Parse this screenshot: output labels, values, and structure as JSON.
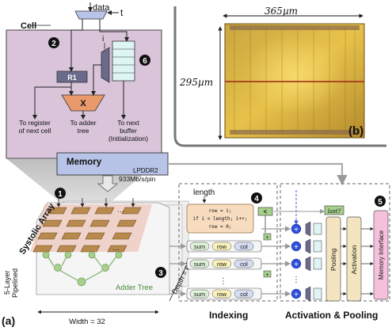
{
  "cell": {
    "title": "Cell",
    "input_data": "data",
    "input_t": "t",
    "input_i": "i",
    "register": "R1",
    "multiplier": "X",
    "label_next_cell": "To register of next cell",
    "label_next_cell_1": "To register",
    "label_next_cell_2": "of next cell",
    "label_adder_1": "To adder",
    "label_adder_2": "tree",
    "label_buffer_1": "To next",
    "label_buffer_2": "buffer",
    "label_buffer_3": "(Initialization)",
    "badge_2": "2",
    "badge_6": "6"
  },
  "chip": {
    "width_label": "365µm",
    "height_label": "295µm",
    "panel_label": "(b)"
  },
  "memory": {
    "title": "Memory",
    "type": "LPDDR2",
    "bandwidth": "933Mb/s/pin"
  },
  "systolic": {
    "title": "Systolic Array",
    "badge_1": "1",
    "badge_3": "3",
    "adder_tree": "Adder Tree",
    "pipeline_1": "5-Layer",
    "pipeline_2": "Pipelined",
    "width_label": "Width = 32",
    "depth_label": "Depth = 64",
    "panel_label": "(a)"
  },
  "indexing": {
    "title": "Indexing",
    "length": "length",
    "badge_4": "4",
    "code_line_1": "row = i;",
    "code_line_2": "if i < length; i++;",
    "code_line_3": "row = 0;",
    "lt_label": "<",
    "sum": "sum",
    "row": "row",
    "col": "col",
    "plus": "+"
  },
  "activation": {
    "title": "Activation & Pooling",
    "badge_5": "5",
    "last_label": "last?",
    "pooling": "Pooling",
    "activation": "Activation",
    "memory_interface": "Memory Interface",
    "plus": "+"
  },
  "colors": {
    "cell_fill": "#d9c4d9",
    "memory_fill": "#b8c3e8",
    "pe_fill": "#b88a4d",
    "adder_node": "#a8d08d",
    "code_fill": "#f7dcc0",
    "sum_fill": "#dff0d8",
    "row_fill": "#f9f1b8",
    "col_fill": "#d6dcf2",
    "block_fill": "#f4e4c0",
    "adder_plus": "#2f4fd8"
  }
}
